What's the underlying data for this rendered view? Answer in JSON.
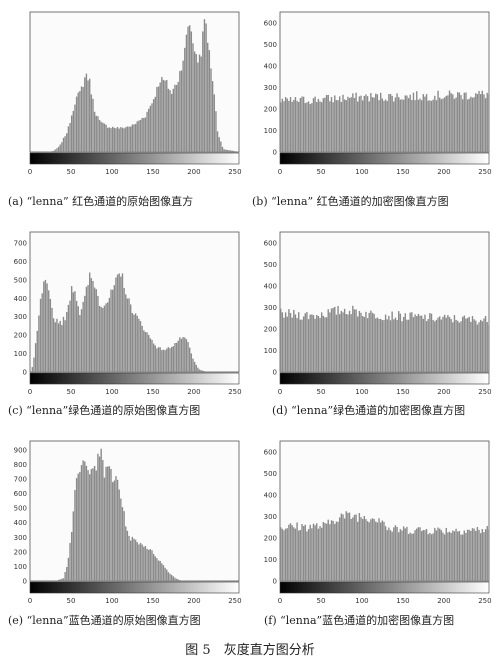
{
  "figure_title": "图 5　灰度直方图分析",
  "captions": {
    "a": "(a) “lenna” 红色通道的原始图像直方",
    "b": "(b) “lenna” 红色通道的加密图像直方图",
    "c": "(c) “lenna”绿色通道的原始图像直方图",
    "d": "(d) “lenna”绿色通道的加密图像直方图",
    "e": "(e) “lenna”蓝色通道的原始图像直方图",
    "f": "(f) “lenna”蓝色通道的加密图像直方图"
  },
  "colors": {
    "bar": "#8a8a8a",
    "frame": "#555555",
    "bg": "#ffffff"
  },
  "chart_data": [
    {
      "id": "a",
      "type": "bar",
      "x_ticks": [
        0,
        50,
        100,
        150,
        200,
        250
      ],
      "y_ticks": [],
      "xlim": [
        0,
        255
      ],
      "ylim": [
        0,
        1000
      ],
      "envelope": [
        [
          0,
          0
        ],
        [
          20,
          0
        ],
        [
          28,
          8
        ],
        [
          35,
          40
        ],
        [
          45,
          150
        ],
        [
          55,
          380
        ],
        [
          60,
          420
        ],
        [
          68,
          560
        ],
        [
          72,
          500
        ],
        [
          78,
          300
        ],
        [
          85,
          210
        ],
        [
          95,
          180
        ],
        [
          110,
          170
        ],
        [
          125,
          190
        ],
        [
          140,
          260
        ],
        [
          150,
          380
        ],
        [
          158,
          520
        ],
        [
          165,
          500
        ],
        [
          172,
          420
        ],
        [
          180,
          520
        ],
        [
          188,
          720
        ],
        [
          193,
          950
        ],
        [
          198,
          800
        ],
        [
          203,
          640
        ],
        [
          208,
          720
        ],
        [
          213,
          980
        ],
        [
          218,
          700
        ],
        [
          223,
          480
        ],
        [
          228,
          150
        ],
        [
          235,
          20
        ],
        [
          255,
          0
        ]
      ]
    },
    {
      "id": "b",
      "type": "bar",
      "x_ticks": [
        0,
        50,
        100,
        150,
        200,
        250
      ],
      "y_ticks": [
        0,
        100,
        200,
        300,
        400,
        500,
        600
      ],
      "xlim": [
        0,
        255
      ],
      "ylim": [
        0,
        650
      ],
      "envelope": [
        [
          0,
          235
        ],
        [
          50,
          245
        ],
        [
          100,
          255
        ],
        [
          150,
          258
        ],
        [
          200,
          262
        ],
        [
          255,
          268
        ]
      ]
    },
    {
      "id": "c",
      "type": "bar",
      "x_ticks": [
        0,
        50,
        100,
        150,
        200,
        250
      ],
      "y_ticks": [
        0,
        100,
        200,
        300,
        400,
        500,
        600,
        700
      ],
      "xlim": [
        0,
        255
      ],
      "ylim": [
        0,
        760
      ],
      "envelope": [
        [
          0,
          0
        ],
        [
          3,
          40
        ],
        [
          8,
          220
        ],
        [
          13,
          420
        ],
        [
          18,
          500
        ],
        [
          22,
          420
        ],
        [
          28,
          290
        ],
        [
          38,
          270
        ],
        [
          45,
          320
        ],
        [
          50,
          470
        ],
        [
          55,
          430
        ],
        [
          60,
          320
        ],
        [
          65,
          380
        ],
        [
          72,
          520
        ],
        [
          78,
          480
        ],
        [
          85,
          360
        ],
        [
          95,
          390
        ],
        [
          105,
          500
        ],
        [
          112,
          520
        ],
        [
          118,
          400
        ],
        [
          125,
          330
        ],
        [
          135,
          260
        ],
        [
          145,
          190
        ],
        [
          155,
          130
        ],
        [
          165,
          120
        ],
        [
          175,
          150
        ],
        [
          185,
          190
        ],
        [
          192,
          160
        ],
        [
          198,
          70
        ],
        [
          205,
          15
        ],
        [
          215,
          0
        ],
        [
          255,
          0
        ]
      ]
    },
    {
      "id": "d",
      "type": "bar",
      "x_ticks": [
        0,
        50,
        100,
        150,
        200,
        250
      ],
      "y_ticks": [
        0,
        100,
        200,
        300,
        400,
        500,
        600
      ],
      "xlim": [
        0,
        255
      ],
      "ylim": [
        0,
        650
      ],
      "envelope": [
        [
          0,
          270
        ],
        [
          40,
          262
        ],
        [
          80,
          290
        ],
        [
          110,
          268
        ],
        [
          150,
          258
        ],
        [
          200,
          248
        ],
        [
          255,
          240
        ]
      ]
    },
    {
      "id": "e",
      "type": "bar",
      "x_ticks": [
        0,
        50,
        100,
        150,
        200,
        250
      ],
      "y_ticks": [
        0,
        100,
        200,
        300,
        400,
        500,
        600,
        700,
        800,
        900
      ],
      "xlim": [
        0,
        255
      ],
      "ylim": [
        0,
        960
      ],
      "envelope": [
        [
          0,
          0
        ],
        [
          30,
          0
        ],
        [
          40,
          20
        ],
        [
          45,
          120
        ],
        [
          50,
          350
        ],
        [
          55,
          650
        ],
        [
          60,
          760
        ],
        [
          65,
          820
        ],
        [
          70,
          740
        ],
        [
          75,
          830
        ],
        [
          80,
          780
        ],
        [
          85,
          900
        ],
        [
          90,
          720
        ],
        [
          95,
          840
        ],
        [
          100,
          660
        ],
        [
          105,
          720
        ],
        [
          110,
          580
        ],
        [
          115,
          420
        ],
        [
          120,
          300
        ],
        [
          130,
          270
        ],
        [
          140,
          240
        ],
        [
          150,
          190
        ],
        [
          160,
          120
        ],
        [
          170,
          50
        ],
        [
          178,
          15
        ],
        [
          185,
          0
        ],
        [
          255,
          0
        ]
      ]
    },
    {
      "id": "f",
      "type": "bar",
      "x_ticks": [
        0,
        50,
        100,
        150,
        200,
        250
      ],
      "y_ticks": [
        0,
        100,
        200,
        300,
        400,
        500,
        600
      ],
      "xlim": [
        0,
        255
      ],
      "ylim": [
        0,
        650
      ],
      "envelope": [
        [
          0,
          250
        ],
        [
          55,
          255
        ],
        [
          70,
          300
        ],
        [
          95,
          302
        ],
        [
          125,
          290
        ],
        [
          130,
          240
        ],
        [
          200,
          235
        ],
        [
          255,
          238
        ]
      ]
    }
  ]
}
